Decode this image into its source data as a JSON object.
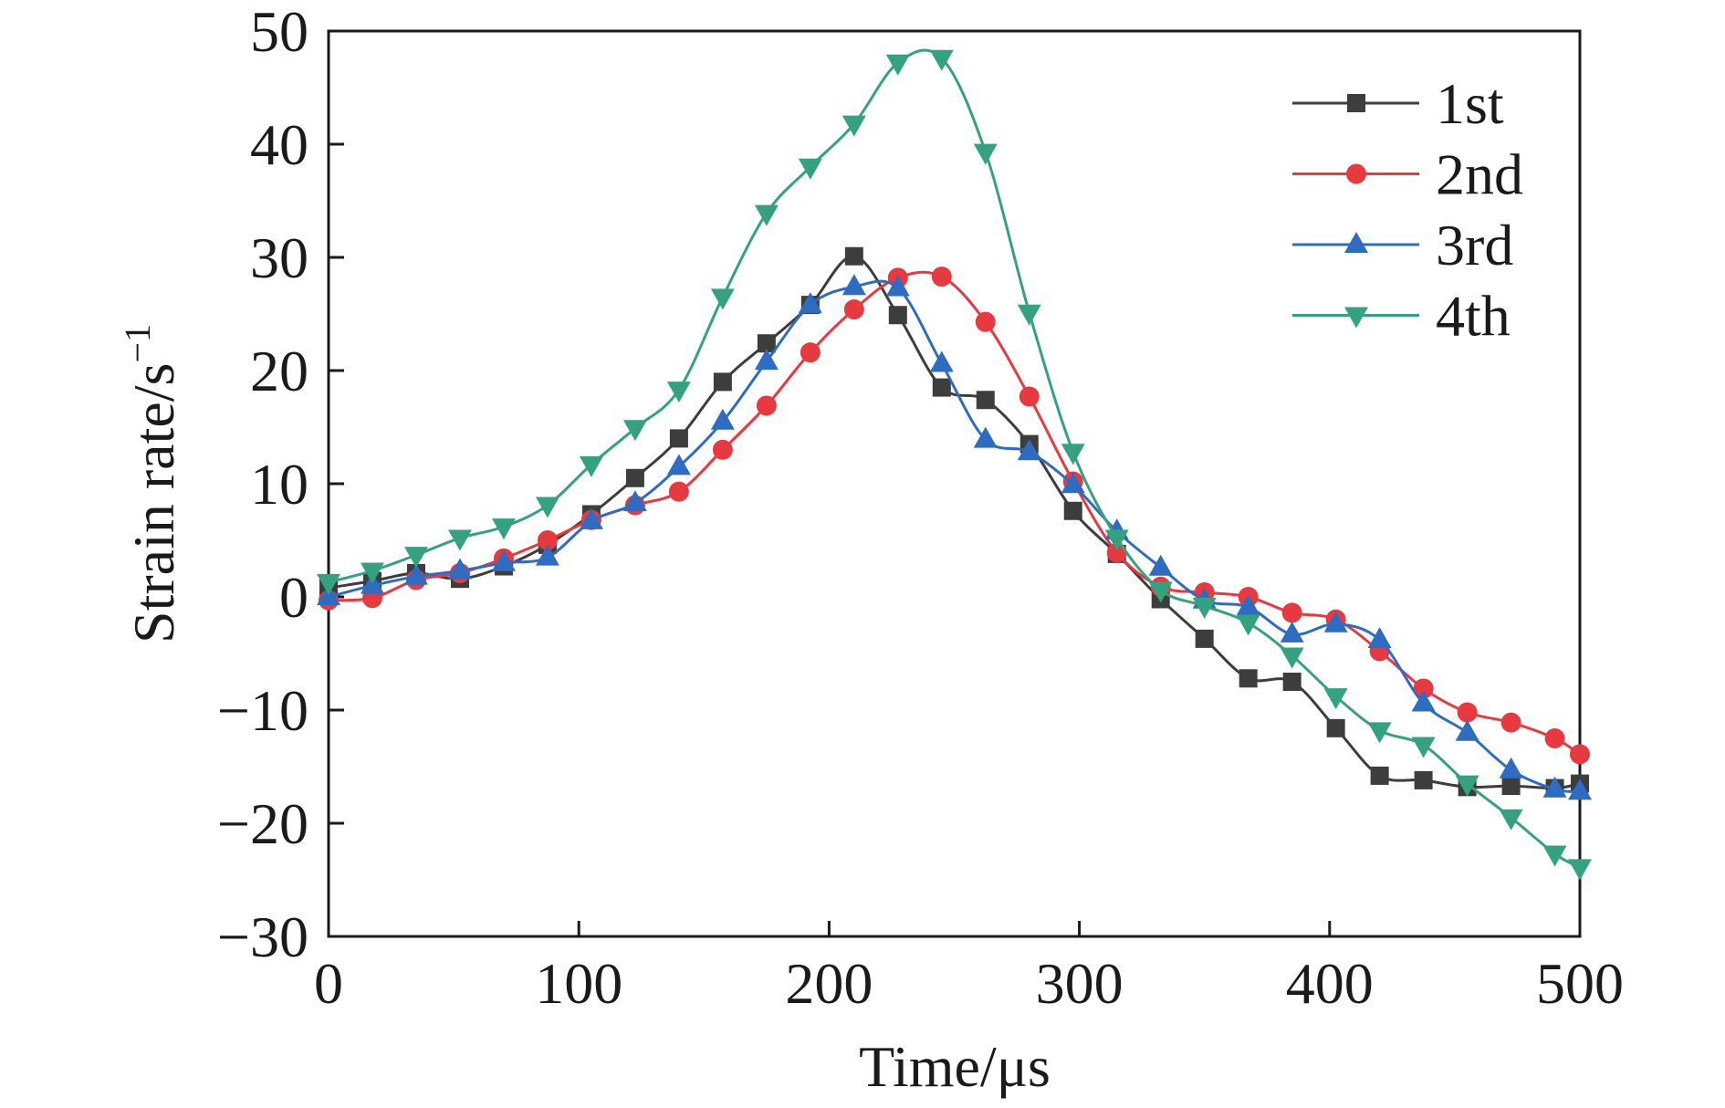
{
  "chart_data": {
    "type": "line",
    "xlabel": "Time/μs",
    "ylabel": "Strain rate/s",
    "ylabel_superscript": "−1",
    "xlim": [
      0,
      500
    ],
    "ylim": [
      -30,
      50
    ],
    "x_ticks": [
      0,
      100,
      200,
      300,
      400,
      500
    ],
    "x_tick_labels": [
      "0",
      "100",
      "200",
      "300",
      "400",
      "500"
    ],
    "y_ticks": [
      -30,
      -20,
      -10,
      0,
      10,
      20,
      30,
      40,
      50
    ],
    "y_tick_labels": [
      "−30",
      "−20",
      "−10",
      "0",
      "10",
      "20",
      "30",
      "40",
      "50"
    ],
    "grid": false,
    "legend_position": "top-right",
    "x": [
      0,
      17.5,
      35,
      52.5,
      70,
      87.5,
      105,
      122.5,
      140,
      157.5,
      175,
      192.5,
      210,
      227.5,
      245,
      262.5,
      280,
      297.5,
      315,
      332.5,
      350,
      367.5,
      385,
      402.5,
      420,
      437.5,
      455,
      472.5,
      490,
      500
    ],
    "series": [
      {
        "name": "1st",
        "color": "#3d3d3d",
        "marker": "square",
        "values": [
          0.8,
          1.4,
          2.1,
          1.6,
          2.7,
          4.6,
          7.3,
          10.5,
          14.0,
          19.0,
          22.4,
          25.8,
          30.1,
          24.9,
          18.5,
          17.4,
          13.5,
          7.6,
          3.8,
          -0.2,
          -3.7,
          -7.2,
          -7.5,
          -11.6,
          -15.8,
          -16.2,
          -16.8,
          -16.7,
          -16.9,
          -16.5
        ]
      },
      {
        "name": "2nd",
        "color": "#e63a40",
        "marker": "circle",
        "values": [
          -0.3,
          -0.1,
          1.5,
          2.1,
          3.4,
          5.0,
          6.8,
          8.1,
          9.3,
          13.0,
          16.9,
          21.6,
          25.4,
          28.2,
          28.3,
          24.3,
          17.7,
          10.2,
          3.9,
          0.9,
          0.4,
          0.0,
          -1.4,
          -2.0,
          -4.8,
          -8.1,
          -10.2,
          -11.1,
          -12.5,
          -13.9
        ]
      },
      {
        "name": "3rd",
        "color": "#2e6cc2",
        "marker": "triangle-up",
        "values": [
          0.0,
          1.0,
          1.8,
          2.3,
          3.0,
          3.5,
          6.7,
          8.3,
          11.5,
          15.5,
          20.8,
          25.8,
          27.4,
          27.3,
          20.6,
          13.9,
          12.8,
          9.9,
          5.8,
          2.6,
          -0.3,
          -0.9,
          -3.3,
          -2.4,
          -3.8,
          -9.4,
          -12.0,
          -15.3,
          -17.0,
          -17.2
        ]
      },
      {
        "name": "4th",
        "color": "#34a27e",
        "marker": "triangle-down",
        "values": [
          1.3,
          2.3,
          3.7,
          5.2,
          6.2,
          8.1,
          11.7,
          14.9,
          18.3,
          26.5,
          33.9,
          38.0,
          41.8,
          47.2,
          47.6,
          39.3,
          25.1,
          12.8,
          5.2,
          0.6,
          -0.8,
          -2.3,
          -5.2,
          -8.8,
          -11.8,
          -13.1,
          -16.5,
          -19.5,
          -22.7,
          -23.9
        ]
      }
    ]
  }
}
